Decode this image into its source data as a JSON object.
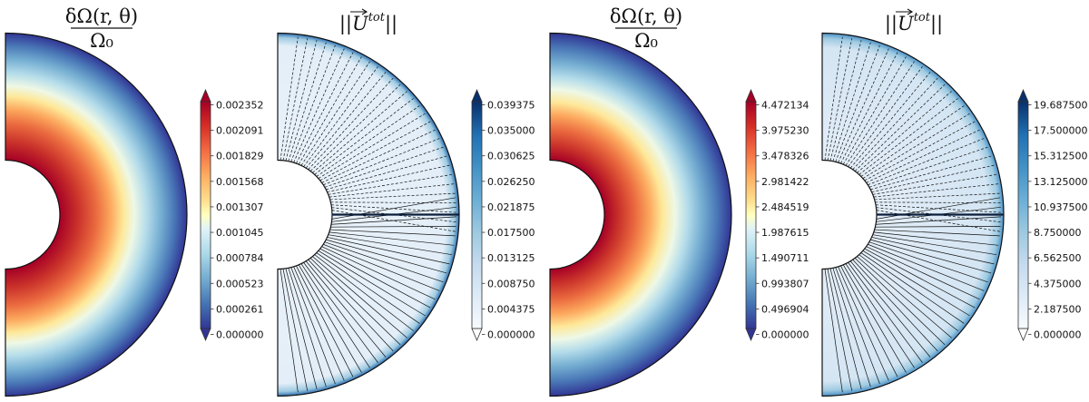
{
  "chart_data": [
    {
      "type": "heatmap",
      "title": {
        "numerator": "δΩ(r, θ)",
        "denominator": "Ω₀"
      },
      "description_kind": "half-annulus differential rotation map",
      "colormap": "RdYlBu_r",
      "colorbar_extend": "both",
      "colorbar_ticks": [
        "0.000000",
        "0.000261",
        "0.000523",
        "0.000784",
        "0.001045",
        "0.001307",
        "0.001568",
        "0.001829",
        "0.002091",
        "0.002352"
      ],
      "range": [
        0.0,
        0.002352
      ]
    },
    {
      "type": "heatmap",
      "title": {
        "norm_of": "U",
        "superscript": "tot"
      },
      "colormap": "Blues",
      "colorbar_extend": "both",
      "colorbar_ticks": [
        "0.000000",
        "0.004375",
        "0.008750",
        "0.013125",
        "0.017500",
        "0.021875",
        "0.026250",
        "0.030625",
        "0.035000",
        "0.039375"
      ],
      "range": [
        0.0,
        0.039375
      ]
    },
    {
      "type": "heatmap",
      "title": {
        "numerator": "δΩ(r, θ)",
        "denominator": "Ω₀"
      },
      "colormap": "RdYlBu_r",
      "colorbar_extend": "both",
      "colorbar_ticks": [
        "0.000000",
        "0.496904",
        "0.993807",
        "1.490711",
        "1.987615",
        "2.484519",
        "2.981422",
        "3.478326",
        "3.975230",
        "4.472134"
      ],
      "range": [
        0.0,
        4.472134
      ]
    },
    {
      "type": "heatmap",
      "title": {
        "norm_of": "U",
        "superscript": "tot"
      },
      "colormap": "Blues",
      "colorbar_extend": "both",
      "colorbar_ticks": [
        "0.000000",
        "2.187500",
        "4.375000",
        "6.562500",
        "8.750000",
        "10.937500",
        "13.125000",
        "15.312500",
        "17.500000",
        "19.687500"
      ],
      "range": [
        0.0,
        19.6875
      ]
    }
  ]
}
